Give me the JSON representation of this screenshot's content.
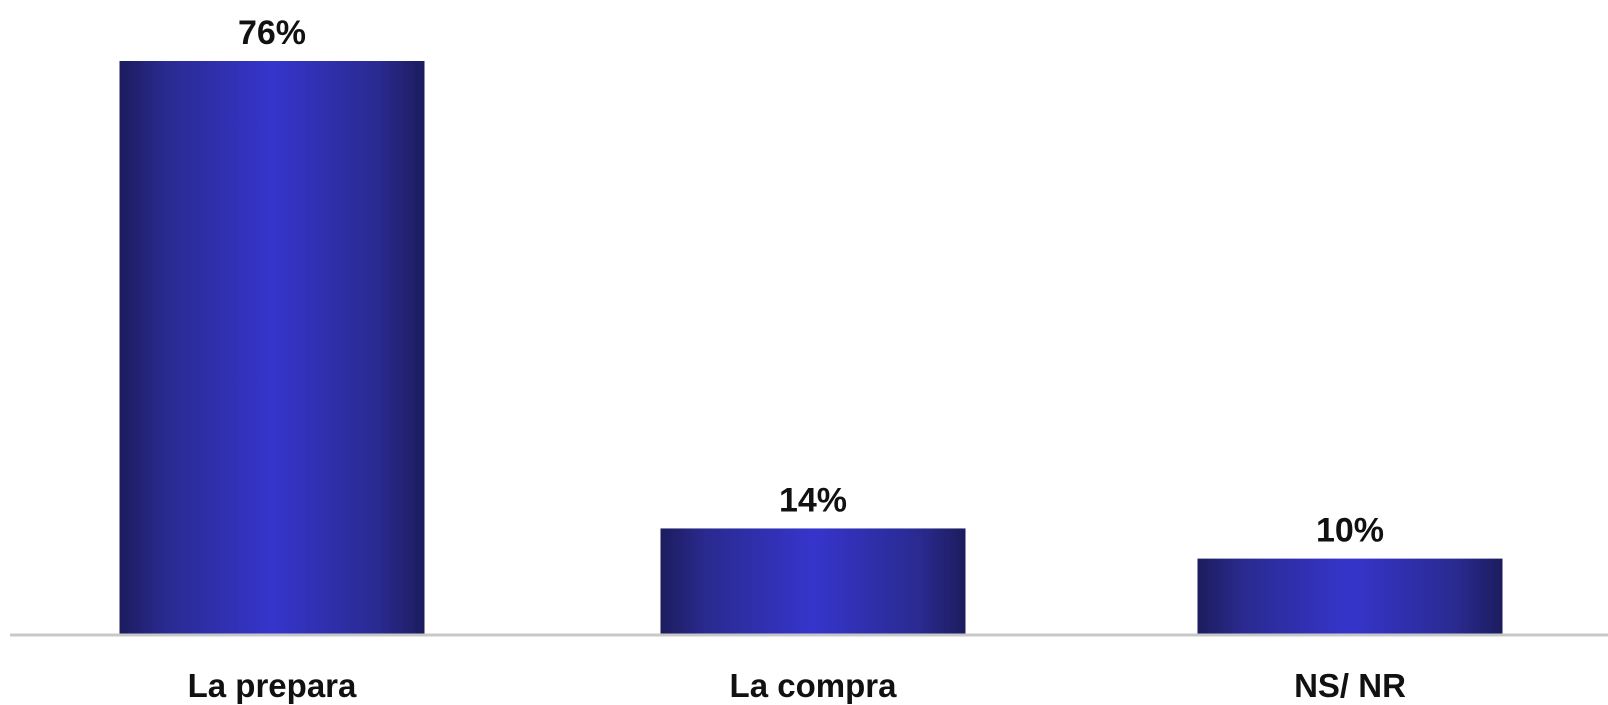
{
  "chart_data": {
    "type": "bar",
    "categories": [
      "La prepara",
      "La compra",
      "NS/ NR"
    ],
    "values": [
      76,
      14,
      10
    ],
    "value_labels": [
      "76%",
      "14%",
      "10%"
    ],
    "ylim": [
      0,
      76
    ],
    "grid": false,
    "legend": "none",
    "colors": {
      "bar_edge": "#1c1c5e",
      "bar_center": "#3535cc",
      "baseline": "#c8c8c8"
    }
  }
}
